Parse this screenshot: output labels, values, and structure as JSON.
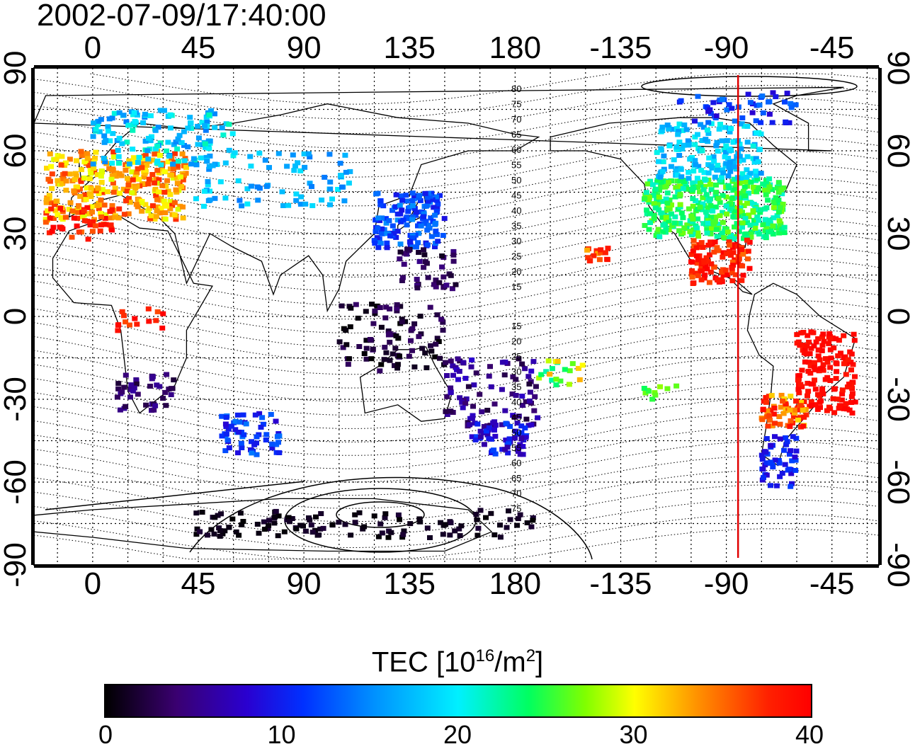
{
  "title": "2002-07-09/17:40:00",
  "lon_ticks_top": [
    "0",
    "45",
    "90",
    "135",
    "180",
    "-135",
    "-90",
    "-45"
  ],
  "lon_ticks_bottom": [
    "0",
    "45",
    "90",
    "135",
    "180",
    "-135",
    "-90",
    "-45"
  ],
  "lat_ticks_left": [
    "90",
    "60",
    "30",
    "0",
    "-30",
    "-60",
    "-90"
  ],
  "lat_ticks_right": [
    "90",
    "60",
    "30",
    "0",
    "-30",
    "-60",
    "-90"
  ],
  "contour_labels_north": [
    "80",
    "75",
    "70",
    "65",
    "60",
    "55",
    "50",
    "45",
    "40",
    "35",
    "30",
    "25",
    "20",
    "15"
  ],
  "contour_labels_south": [
    "15",
    "20",
    "25",
    "30",
    "35",
    "40",
    "45",
    "50",
    "55",
    "60",
    "65",
    "70",
    "75"
  ],
  "colorbar": {
    "label_main": "TEC  [10",
    "label_sup1": "16",
    "label_mid": "/m",
    "label_sup2": "2",
    "label_end": "]",
    "ticks": [
      "0",
      "10",
      "20",
      "30",
      "40"
    ],
    "range": [
      0,
      40
    ]
  },
  "colors": {
    "terminator_line": "#e00000",
    "grid": "#000000"
  },
  "terminator_longitude": -85,
  "map_extent": {
    "lon_min": -25,
    "lon_max": 335,
    "lat_min": -90,
    "lat_max": 90
  }
}
